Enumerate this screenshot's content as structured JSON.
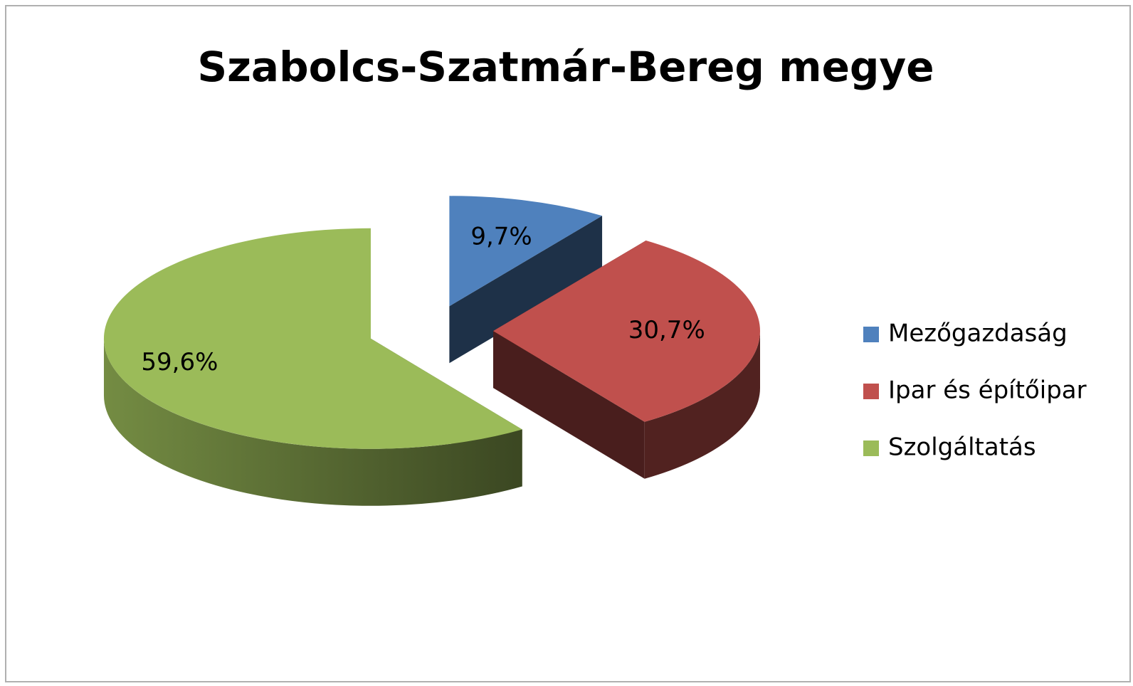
{
  "chart_data": {
    "type": "pie",
    "title": "Szabolcs-Szatmár-Bereg megye",
    "categories": [
      "Mezőgazdaság",
      "Ipar és építőipar",
      "Szolgáltatás"
    ],
    "values": [
      9.7,
      30.7,
      59.6
    ],
    "value_labels": [
      "9,7%",
      "30,7%",
      "59,6%"
    ],
    "colors": [
      "#4f81bd",
      "#c0504d",
      "#9bbb59"
    ],
    "legend": "right"
  }
}
